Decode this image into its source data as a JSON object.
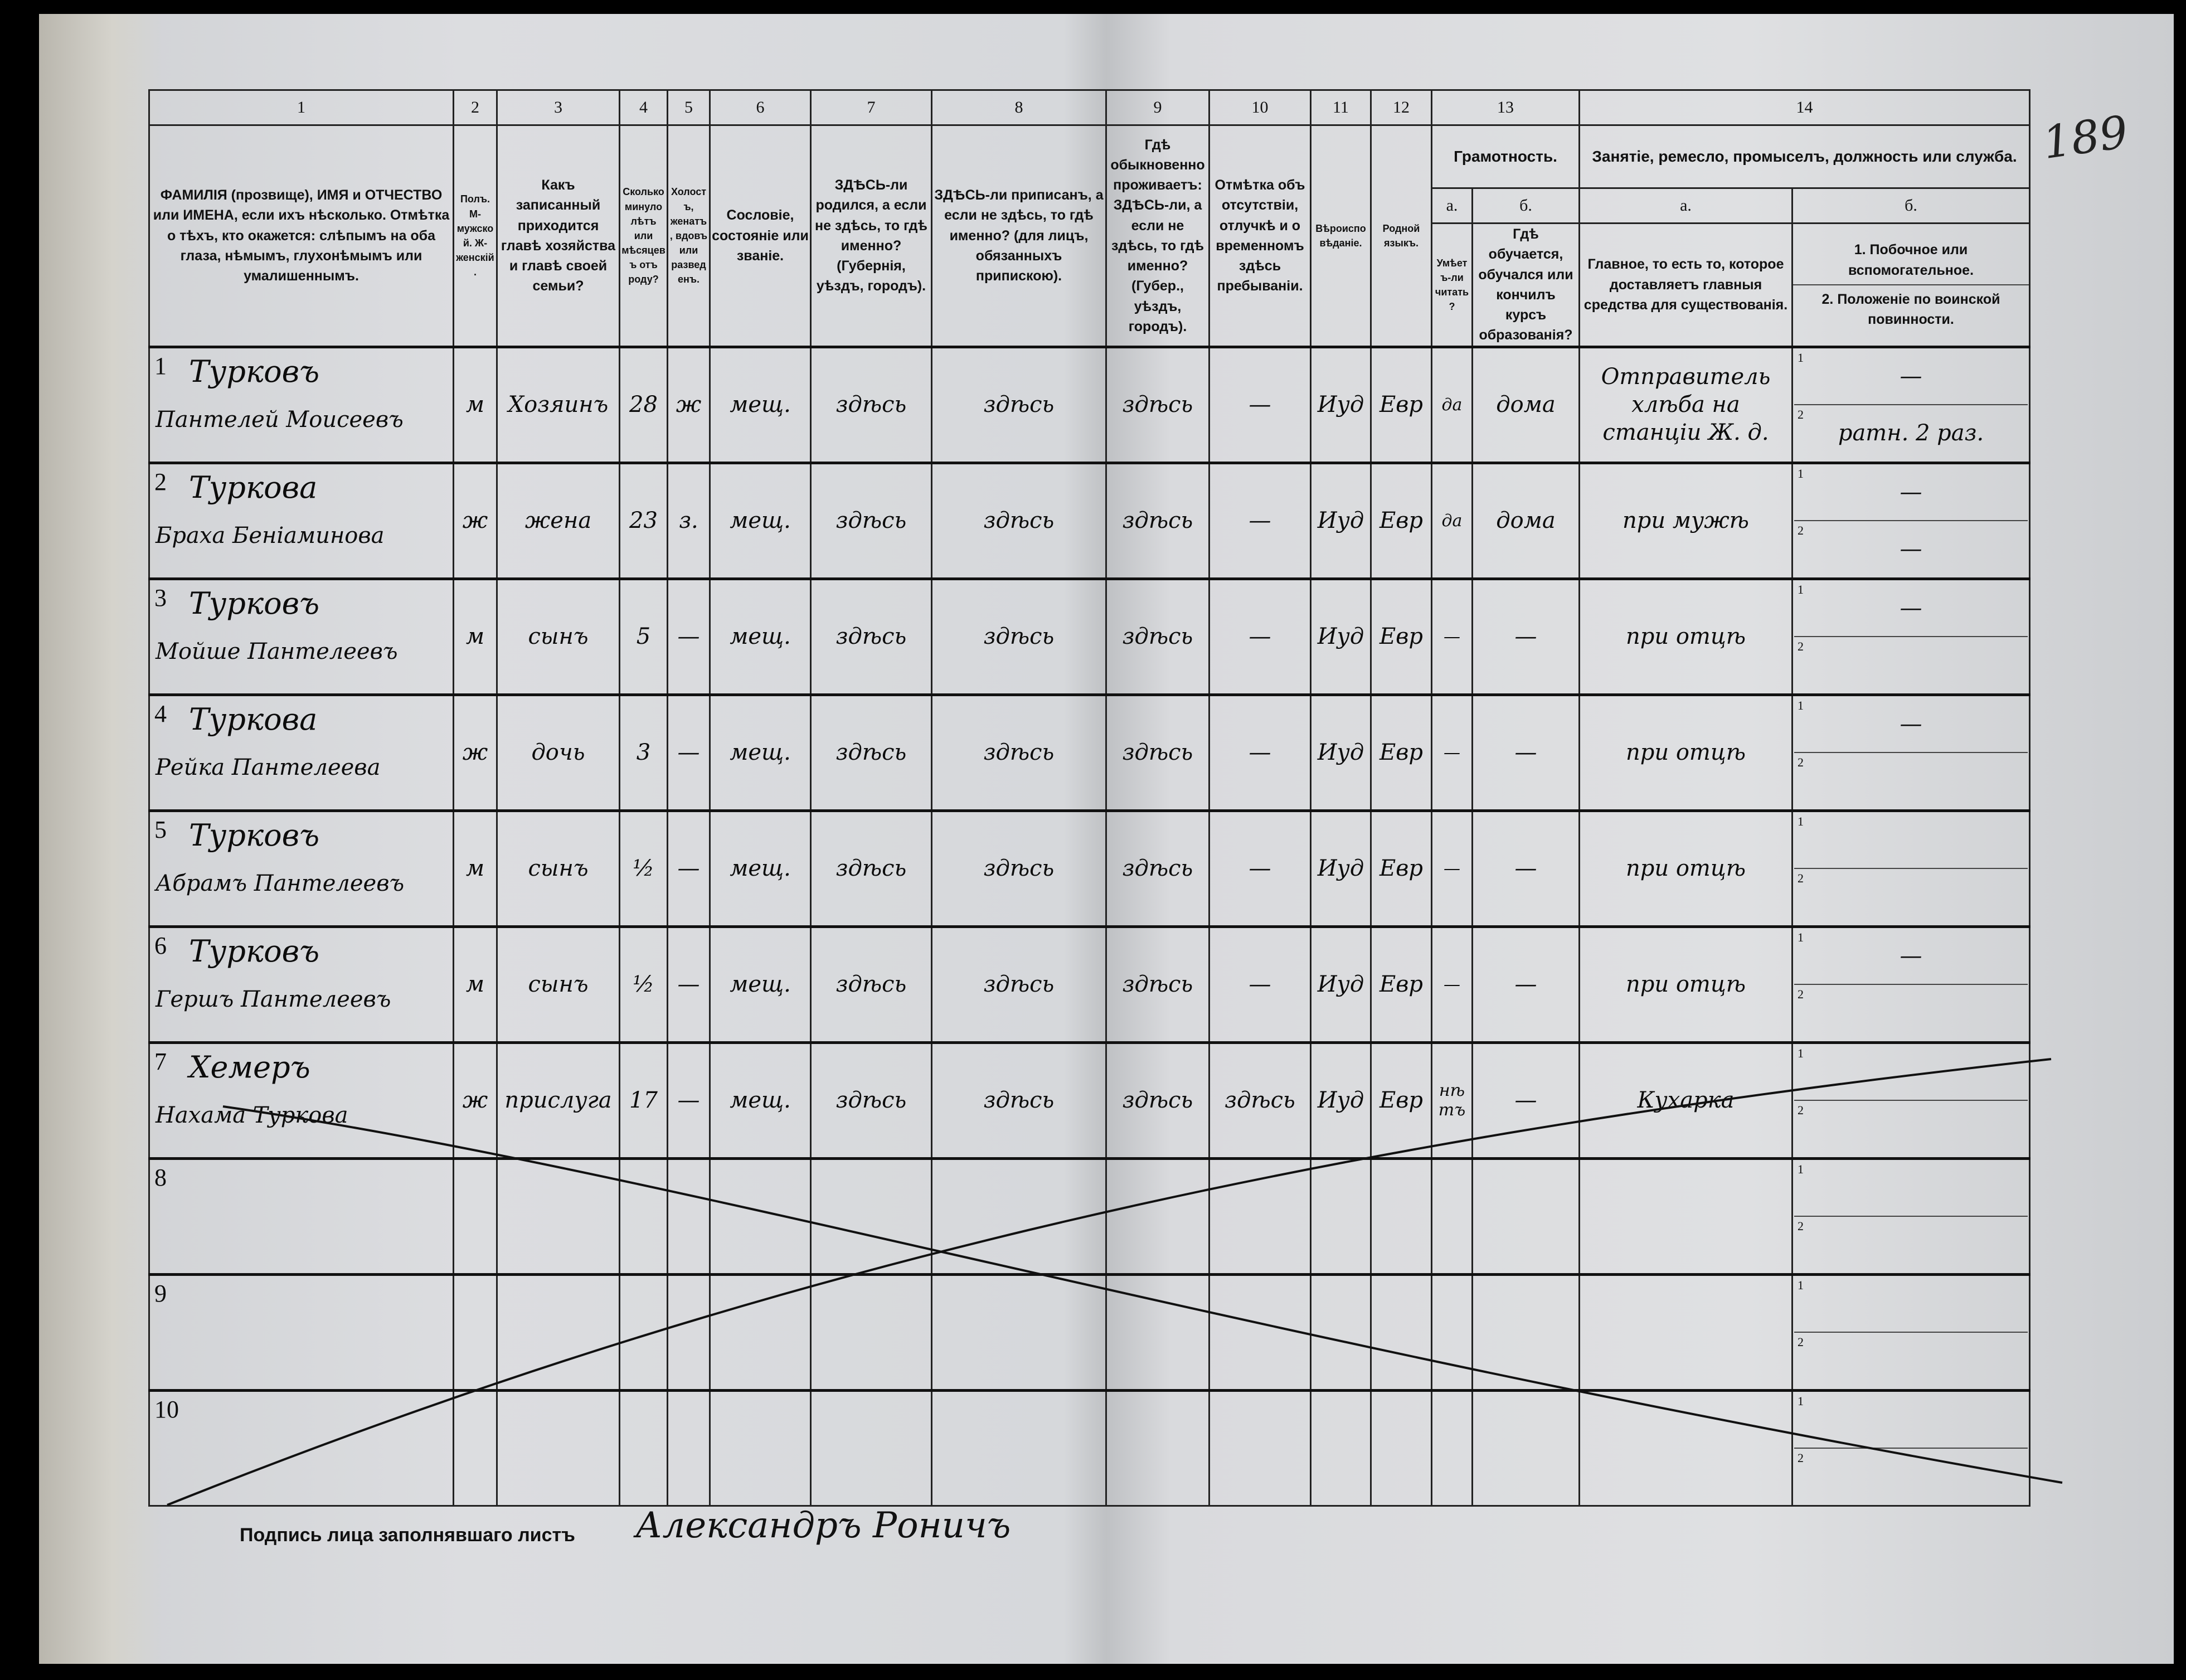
{
  "page_number": "189",
  "header": {
    "numbers": [
      "1",
      "2",
      "3",
      "4",
      "5",
      "6",
      "7",
      "8",
      "9",
      "10",
      "11",
      "12",
      "13",
      "14"
    ],
    "columns": [
      "ФАМИЛІЯ (прозвище), ИМЯ и ОТЧЕСТВО или ИМЕНА, если ихъ нѣсколько. Отмѣтка о тѣхъ, кто окажется: слѣпымъ на оба глаза, нѣмымъ, глухонѣмымъ или умалишеннымъ.",
      "Полъ. М-мужской. Ж-женскій.",
      "Какъ записанный приходится главѣ хозяйства и главѣ своей семьи?",
      "Сколько минуло лѣтъ или мѣсяцевъ отъ роду?",
      "Холостъ, женатъ, вдовъ или разведенъ.",
      "Сословіе, состояніе или званіе.",
      "ЗДѢСЬ-ли родился, а если не здѣсь, то гдѣ именно? (Губернія, уѣздъ, городъ).",
      "ЗДѢСЬ-ли приписанъ, а если не здѣсь, то гдѣ именно? (для лицъ, обязанныхъ припискою).",
      "Гдѣ обыкновенно проживаетъ: ЗДѢСЬ-ли, а если не здѣсь, то гдѣ именно? (Губер., уѣздъ, городъ).",
      "Отмѣтка объ отсутствіи, отлучкѣ и о временномъ здѣсь пребываніи.",
      "Вѣроисповѣданіе.",
      "Родной языкъ."
    ],
    "literacy": {
      "title": "Грамотность.",
      "a": "а.",
      "b": "б.",
      "a_text": "Умѣетъ-ли читать?",
      "b_text": "Гдѣ обучается, обучался или кончилъ курсъ образованія?"
    },
    "occupation": {
      "title": "Занятіе, ремесло, промыселъ, должность или служба.",
      "a": "а.",
      "b": "б.",
      "a_text": "Главное, то есть то, которое доставляетъ главныя средства для существованія.",
      "b1": "1. Побочное или вспомогательное.",
      "b2": "2. Положеніе по воинской повинности."
    }
  },
  "rows": [
    {
      "n": "1",
      "surname": "Турковъ",
      "given": "Пантелей Моисеевъ",
      "sex": "м",
      "relation": "Хозяинъ",
      "age": "28",
      "marital": "ж",
      "estate": "мещ.",
      "born": "здѣсь",
      "registered": "здѣсь",
      "resides": "здѣсь",
      "absence": "—",
      "religion": "Иуд",
      "language": "Евр",
      "literate": "да",
      "schooling": "дома",
      "occupation": "Отправитель хлѣба на станціи Ж. д.",
      "side": "—",
      "military": "ратн. 2 раз."
    },
    {
      "n": "2",
      "surname": "Туркова",
      "given": "Браха Беніаминова",
      "sex": "ж",
      "relation": "жена",
      "age": "23",
      "marital": "з.",
      "estate": "мещ.",
      "born": "здѣсь",
      "registered": "здѣсь",
      "resides": "здѣсь",
      "absence": "—",
      "religion": "Иуд",
      "language": "Евр",
      "literate": "да",
      "schooling": "дома",
      "occupation": "при мужѣ",
      "side": "—",
      "military": "—"
    },
    {
      "n": "3",
      "surname": "Турковъ",
      "given": "Мойше Пантелеевъ",
      "sex": "м",
      "relation": "сынъ",
      "age": "5",
      "marital": "—",
      "estate": "мещ.",
      "born": "здѣсь",
      "registered": "здѣсь",
      "resides": "здѣсь",
      "absence": "—",
      "religion": "Иуд",
      "language": "Евр",
      "literate": "—",
      "schooling": "—",
      "occupation": "при отцѣ",
      "side": "—",
      "military": ""
    },
    {
      "n": "4",
      "surname": "Туркова",
      "given": "Рейка Пантелеева",
      "sex": "ж",
      "relation": "дочь",
      "age": "3",
      "marital": "—",
      "estate": "мещ.",
      "born": "здѣсь",
      "registered": "здѣсь",
      "resides": "здѣсь",
      "absence": "—",
      "religion": "Иуд",
      "language": "Евр",
      "literate": "—",
      "schooling": "—",
      "occupation": "при отцѣ",
      "side": "—",
      "military": ""
    },
    {
      "n": "5",
      "surname": "Турковъ",
      "given": "Абрамъ Пантелеевъ",
      "sex": "м",
      "relation": "сынъ",
      "age": "½",
      "marital": "—",
      "estate": "мещ.",
      "born": "здѣсь",
      "registered": "здѣсь",
      "resides": "здѣсь",
      "absence": "—",
      "religion": "Иуд",
      "language": "Евр",
      "literate": "—",
      "schooling": "—",
      "occupation": "при отцѣ",
      "side": "",
      "military": ""
    },
    {
      "n": "6",
      "surname": "Турковъ",
      "given": "Гершъ Пантелеевъ",
      "sex": "м",
      "relation": "сынъ",
      "age": "½",
      "marital": "—",
      "estate": "мещ.",
      "born": "здѣсь",
      "registered": "здѣсь",
      "resides": "здѣсь",
      "absence": "—",
      "religion": "Иуд",
      "language": "Евр",
      "literate": "—",
      "schooling": "—",
      "occupation": "при отцѣ",
      "side": "—",
      "military": ""
    },
    {
      "n": "7",
      "surname": "Хемеръ",
      "given": "Нахама Туркова",
      "sex": "ж",
      "relation": "прислуга",
      "age": "17",
      "marital": "—",
      "estate": "мещ.",
      "born": "здѣсь",
      "registered": "здѣсь",
      "resides": "здѣсь",
      "absence": "здѣсь",
      "religion": "Иуд",
      "language": "Евр",
      "literate": "нѣтъ",
      "schooling": "—",
      "occupation": "Кухарка",
      "side": "",
      "military": ""
    },
    {
      "n": "8",
      "surname": "",
      "given": "",
      "sex": "",
      "relation": "",
      "age": "",
      "marital": "",
      "estate": "",
      "born": "",
      "registered": "",
      "resides": "",
      "absence": "",
      "religion": "",
      "language": "",
      "literate": "",
      "schooling": "",
      "occupation": "",
      "side": "",
      "military": ""
    },
    {
      "n": "9",
      "surname": "",
      "given": "",
      "sex": "",
      "relation": "",
      "age": "",
      "marital": "",
      "estate": "",
      "born": "",
      "registered": "",
      "resides": "",
      "absence": "",
      "religion": "",
      "language": "",
      "literate": "",
      "schooling": "",
      "occupation": "",
      "side": "",
      "military": ""
    },
    {
      "n": "10",
      "surname": "",
      "given": "",
      "sex": "",
      "relation": "",
      "age": "",
      "marital": "",
      "estate": "",
      "born": "",
      "registered": "",
      "resides": "",
      "absence": "",
      "religion": "",
      "language": "",
      "literate": "",
      "schooling": "",
      "occupation": "",
      "side": "",
      "military": ""
    }
  ],
  "sub_labels": {
    "one": "1",
    "two": "2"
  },
  "footer": {
    "signature_label": "Подпись лица заполнявшаго листъ",
    "signature": "Александръ Роничъ"
  }
}
